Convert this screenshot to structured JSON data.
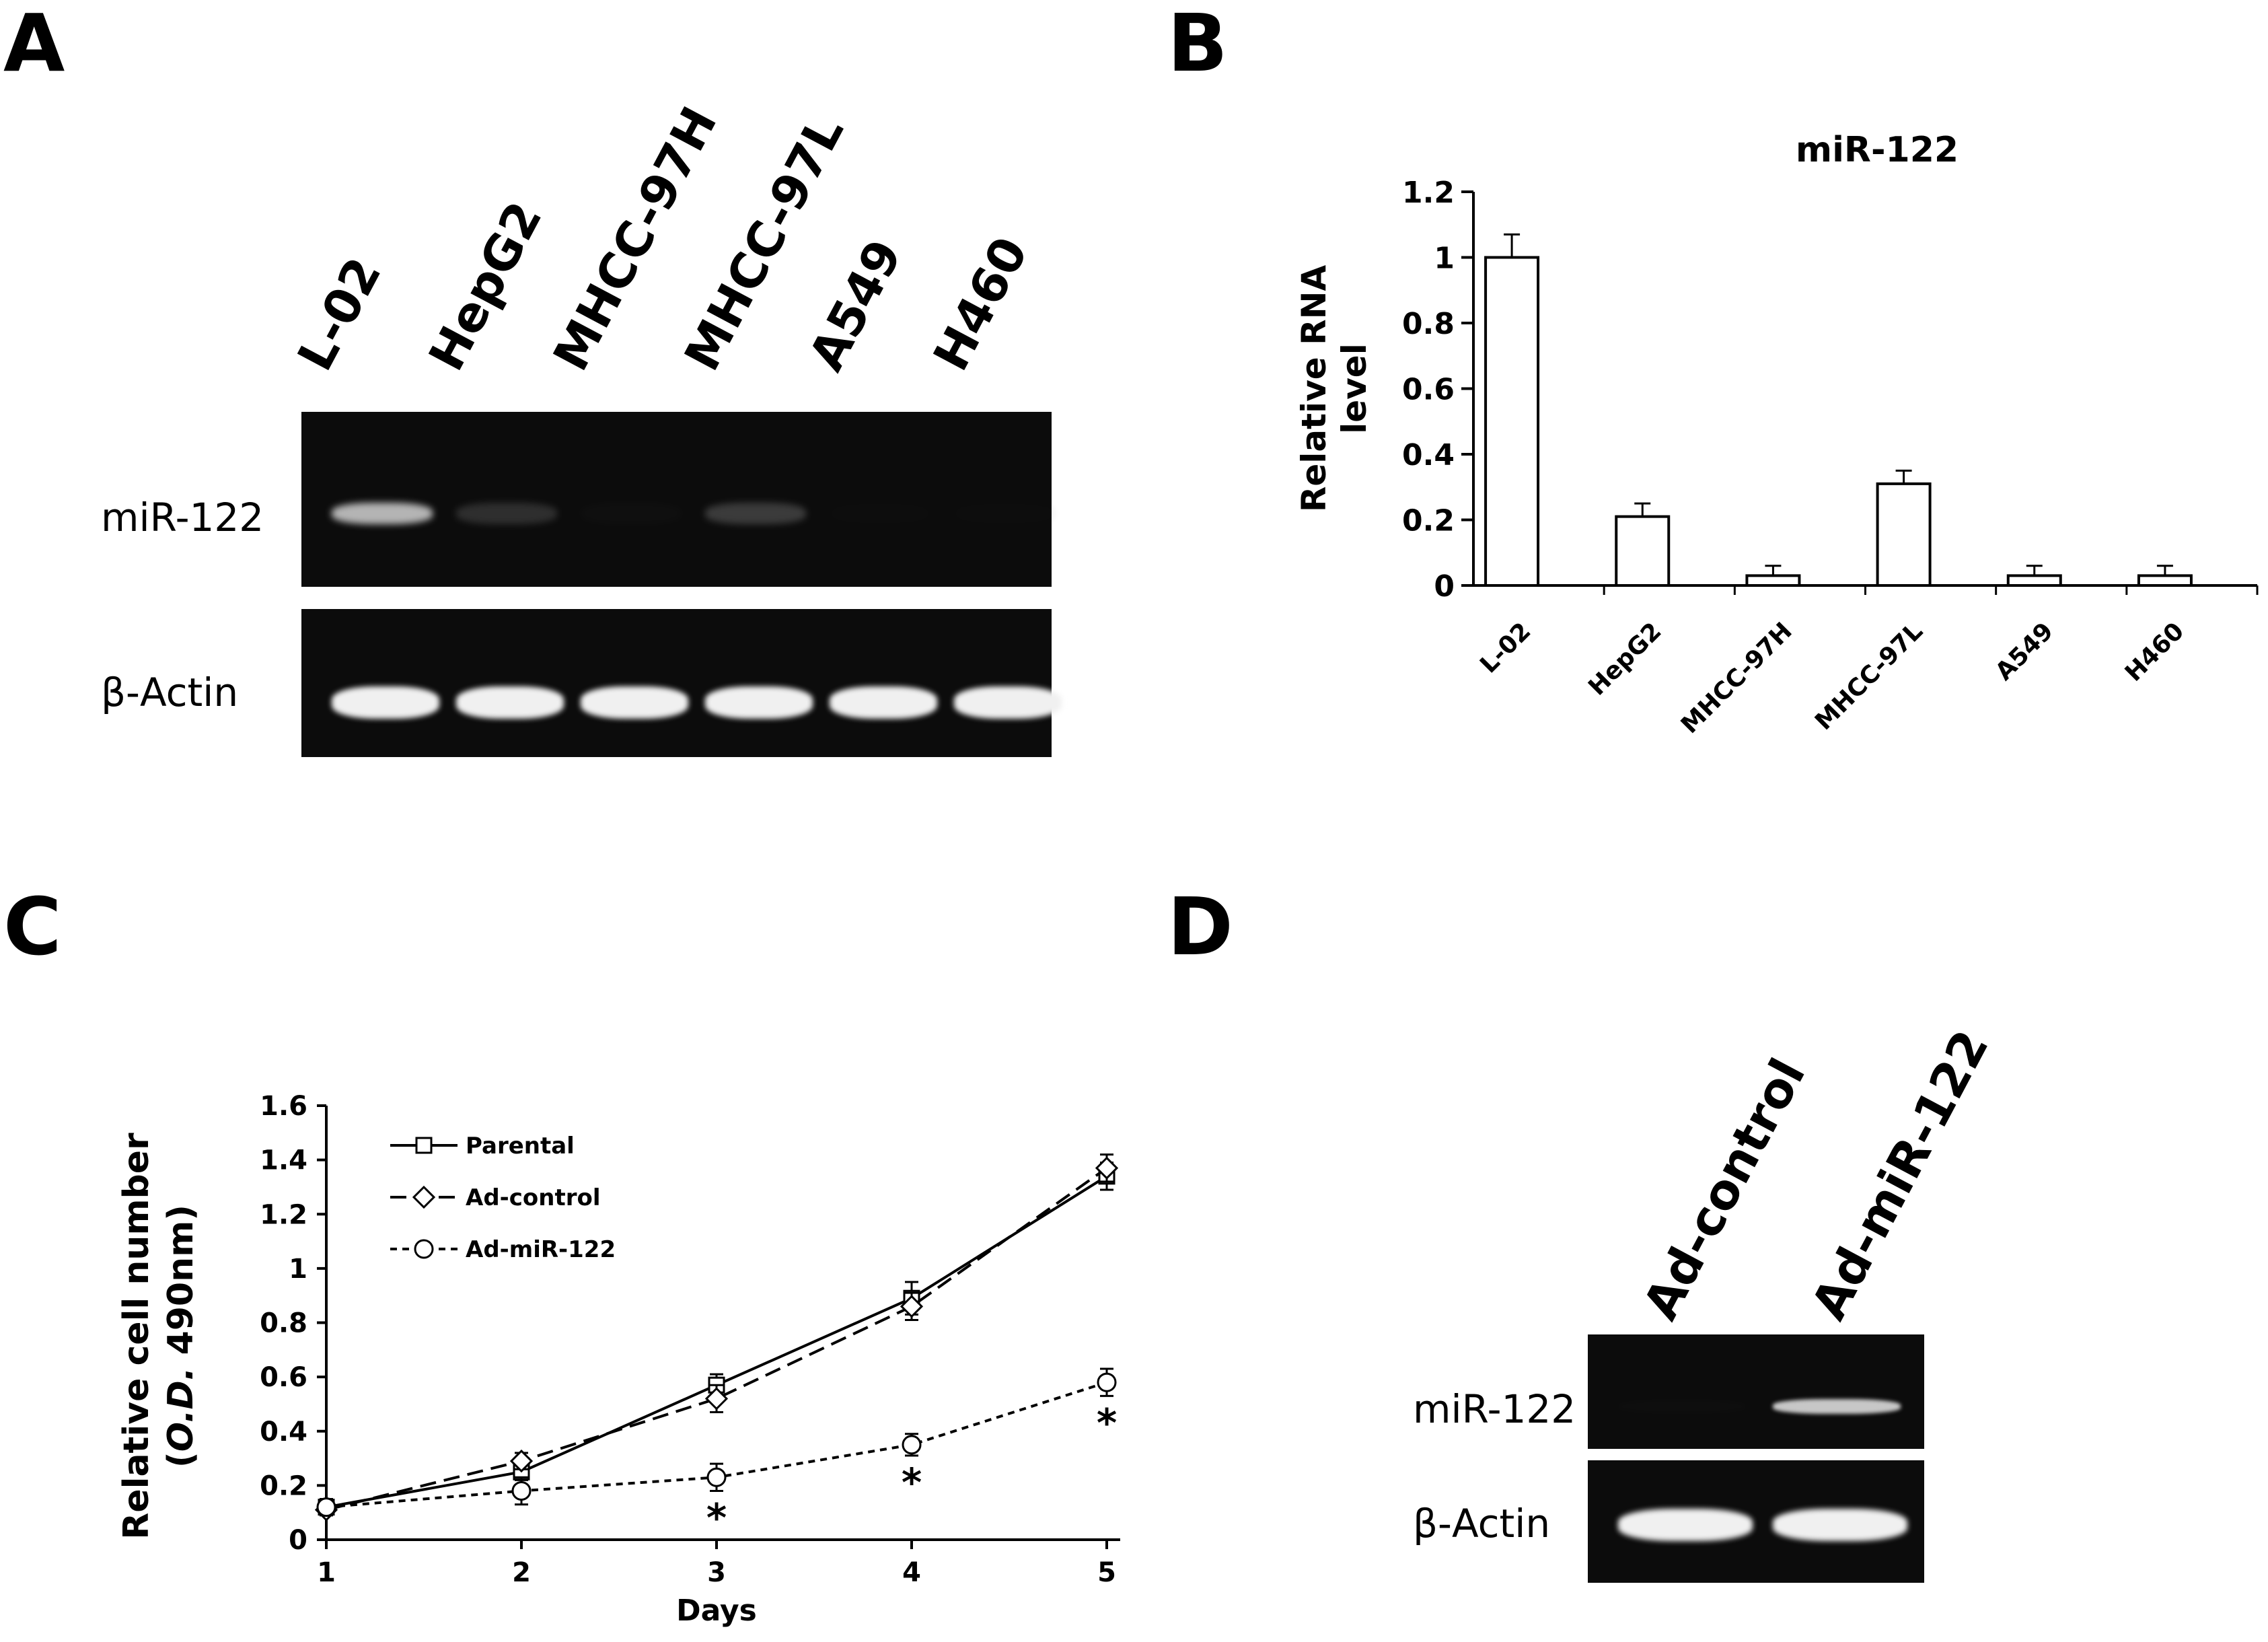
{
  "panels": {
    "a": "A",
    "b": "B",
    "c": "C",
    "d": "D"
  },
  "panel_a": {
    "lanes": [
      "L-02",
      "HepG2",
      "MHCC-97H",
      "MHCC-97L",
      "A549",
      "H460"
    ],
    "row_labels": [
      "miR-122",
      "β-Actin"
    ],
    "mir122_intensity": [
      0.85,
      0.35,
      0.08,
      0.42,
      0.0,
      0.0
    ],
    "actin_intensity": [
      1,
      1,
      1,
      1,
      1,
      1
    ]
  },
  "panel_d": {
    "lanes": [
      "Ad-control",
      "Ad-miR-122"
    ],
    "row_labels": [
      "miR-122",
      "β-Actin"
    ],
    "mir122_intensity": [
      0.05,
      0.9
    ],
    "actin_intensity": [
      1,
      1
    ]
  },
  "chart_data": [
    {
      "type": "bar",
      "title": "miR-122",
      "ylabel": "Relative RNA level",
      "xlabel": "",
      "categories": [
        "L-02",
        "HepG2",
        "MHCC-97H",
        "MHCC-97L",
        "A549",
        "H460"
      ],
      "values": [
        1.0,
        0.21,
        0.03,
        0.31,
        0.03,
        0.03
      ],
      "errors": [
        0.07,
        0.04,
        0.03,
        0.04,
        0.03,
        0.03
      ],
      "ylim": [
        0,
        1.2
      ],
      "yticks": [
        "0",
        "0.2",
        "0.4",
        "0.6",
        "0.8",
        "1",
        "1.2"
      ],
      "grid": false,
      "legend": "none"
    },
    {
      "type": "line",
      "title": "",
      "xlabel": "Days",
      "ylabel": "Relative cell number",
      "ylabel_line2": "(O.D. 490nm)",
      "ylabel_line2_parts": [
        "(",
        "O.D.",
        " 490nm)"
      ],
      "x": [
        1,
        2,
        3,
        4,
        5
      ],
      "xticks": [
        "1",
        "2",
        "3",
        "4",
        "5"
      ],
      "ylim": [
        0,
        1.6
      ],
      "yticks": [
        "0",
        "0.2",
        "0.4",
        "0.6",
        "0.8",
        "1",
        "1.2",
        "1.4",
        "1.6"
      ],
      "legend": "top-left",
      "grid": false,
      "series": [
        {
          "name": "Parental",
          "marker": "square",
          "linestyle": "solid",
          "values": [
            0.12,
            0.25,
            0.57,
            0.89,
            1.34
          ],
          "errors": [
            0.02,
            0.03,
            0.04,
            0.06,
            0.05
          ]
        },
        {
          "name": "Ad-control",
          "marker": "diamond",
          "linestyle": "dashed",
          "values": [
            0.11,
            0.29,
            0.52,
            0.86,
            1.37
          ],
          "errors": [
            0.02,
            0.03,
            0.05,
            0.05,
            0.05
          ]
        },
        {
          "name": "Ad-miR-122",
          "marker": "circle",
          "linestyle": "dotted",
          "values": [
            0.12,
            0.18,
            0.23,
            0.35,
            0.58
          ],
          "errors": [
            0.03,
            0.05,
            0.05,
            0.04,
            0.05
          ]
        }
      ],
      "annotations": [
        {
          "x": 3,
          "text": "*"
        },
        {
          "x": 4,
          "text": "*"
        },
        {
          "x": 5,
          "text": "*"
        }
      ]
    }
  ]
}
